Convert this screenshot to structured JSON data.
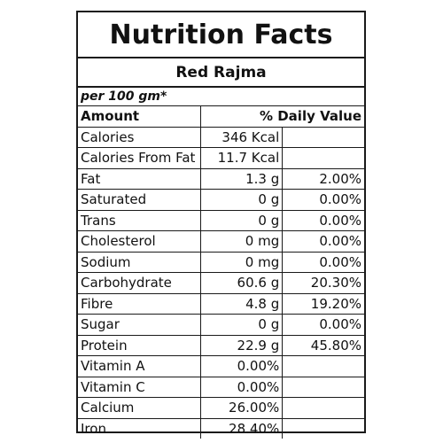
{
  "title": "Nutrition Facts",
  "product": "Red Rajma",
  "serving": "per 100 gm*",
  "header": {
    "amount": "Amount",
    "daily_value": "% Daily Value"
  },
  "rows": [
    {
      "name": "Calories",
      "amount": "346 Kcal",
      "dv": ""
    },
    {
      "name": "Calories From Fat",
      "amount": "11.7 Kcal",
      "dv": ""
    },
    {
      "name": "Fat",
      "amount": "1.3 g",
      "dv": "2.00%"
    },
    {
      "name": "Saturated",
      "amount": "0 g",
      "dv": "0.00%"
    },
    {
      "name": "Trans",
      "amount": "0 g",
      "dv": "0.00%"
    },
    {
      "name": "Cholesterol",
      "amount": "0 mg",
      "dv": "0.00%"
    },
    {
      "name": "Sodium",
      "amount": "0 mg",
      "dv": "0.00%"
    },
    {
      "name": "Carbohydrate",
      "amount": "60.6 g",
      "dv": "20.30%"
    },
    {
      "name": "Fibre",
      "amount": "4.8 g",
      "dv": "19.20%"
    },
    {
      "name": "Sugar",
      "amount": "0 g",
      "dv": "0.00%"
    },
    {
      "name": "Protein",
      "amount": "22.9 g",
      "dv": "45.80%"
    },
    {
      "name": "Vitamin A",
      "amount": "0.00%",
      "dv": ""
    },
    {
      "name": "Vitamin C",
      "amount": "0.00%",
      "dv": ""
    },
    {
      "name": "Calcium",
      "amount": "26.00%",
      "dv": ""
    },
    {
      "name": "Iron",
      "amount": "28.40%",
      "dv": ""
    }
  ]
}
